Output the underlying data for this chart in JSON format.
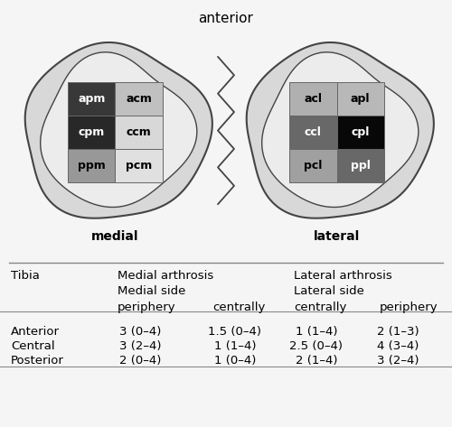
{
  "title_top": "anterior",
  "medial_label": "medial",
  "lateral_label": "lateral",
  "medial_cells": [
    {
      "name": "apm",
      "color": "#383838",
      "text_color": "white",
      "row": 0,
      "col": 0
    },
    {
      "name": "acm",
      "color": "#c0c0c0",
      "text_color": "black",
      "row": 0,
      "col": 1
    },
    {
      "name": "cpm",
      "color": "#282828",
      "text_color": "white",
      "row": 1,
      "col": 0
    },
    {
      "name": "ccm",
      "color": "#d8d8d8",
      "text_color": "black",
      "row": 1,
      "col": 1
    },
    {
      "name": "ppm",
      "color": "#989898",
      "text_color": "black",
      "row": 2,
      "col": 0
    },
    {
      "name": "pcm",
      "color": "#e0e0e0",
      "text_color": "black",
      "row": 2,
      "col": 1
    }
  ],
  "lateral_cells": [
    {
      "name": "acl",
      "color": "#b0b0b0",
      "text_color": "black",
      "row": 0,
      "col": 0
    },
    {
      "name": "apl",
      "color": "#b8b8b8",
      "text_color": "black",
      "row": 0,
      "col": 1
    },
    {
      "name": "ccl",
      "color": "#686868",
      "text_color": "white",
      "row": 1,
      "col": 0
    },
    {
      "name": "cpl",
      "color": "#080808",
      "text_color": "white",
      "row": 1,
      "col": 1
    },
    {
      "name": "pcl",
      "color": "#a0a0a0",
      "text_color": "black",
      "row": 2,
      "col": 0
    },
    {
      "name": "ppl",
      "color": "#686868",
      "text_color": "white",
      "row": 2,
      "col": 1
    }
  ],
  "outer_blob_color": "#d8d8d8",
  "outer_blob_edge": "#444444",
  "inner_blob_color": "#ececec",
  "background_color": "#f5f5f5",
  "table_bg": "#e8e8e8",
  "table_rows": [
    [
      "Anterior",
      "3 (0–4)",
      "1.5 (0–4)",
      "1 (1–4)",
      "2 (1–3)"
    ],
    [
      "Central",
      "3 (2–4)",
      "1 (1–4)",
      "2.5 (0–4)",
      "4 (3–4)"
    ],
    [
      "Posterior",
      "2 (0–4)",
      "1 (0–4)",
      "2 (1–4)",
      "3 (2–4)"
    ]
  ],
  "cell_fontsize": 9,
  "label_fontsize": 10,
  "table_fontsize": 9.5
}
